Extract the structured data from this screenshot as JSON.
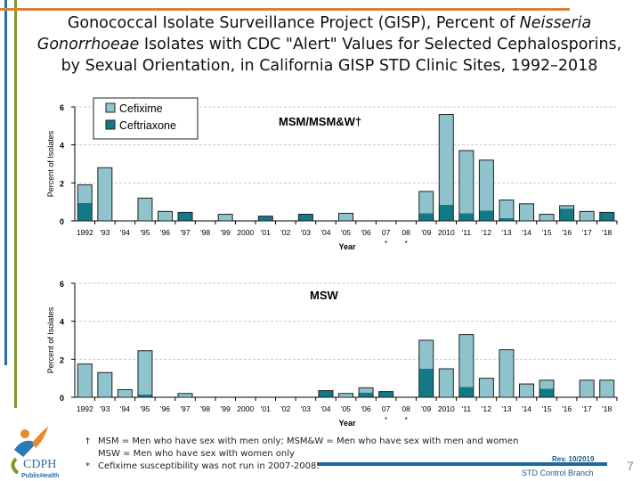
{
  "title": {
    "part1": "Gonococcal Isolate Surveillance Project (GISP), Percent of ",
    "italic": "Neisseria Gonorrhoeae",
    "part2": " Isolates with CDC \"Alert\" Values for Selected Cephalosporins, by Sexual Orientation, in California GISP STD Clinic Sites, 1992–2018"
  },
  "colors": {
    "cefixime": "#8fc4cc",
    "ceftriaxone": "#127a86",
    "blue_rule": "#2a6ea8",
    "green_rule": "#7a9a2a",
    "orange_rule": "#d7843a"
  },
  "chart_data": [
    {
      "type": "bar",
      "stacked": true,
      "title": "MSM/MSM&W†",
      "xlabel": "Year",
      "ylabel": "Percent of Isolates",
      "ylim": [
        0,
        6
      ],
      "yticks": [
        "0",
        "2",
        "4",
        "6"
      ],
      "grid": true,
      "legend": "top-left",
      "categories": [
        "1992",
        "'93",
        "'94",
        "'95",
        "'96",
        "'97",
        "'98",
        "'99",
        "2000",
        "'01",
        "'02",
        "'03",
        "'04",
        "'05",
        "'06",
        "07",
        "08",
        "'09",
        "2010",
        "'11",
        "'12",
        "'13",
        "'14",
        "'15",
        "'16",
        "'17",
        "'18"
      ],
      "category_marks": {
        "07": "*",
        "08": "*"
      },
      "series": [
        {
          "name": "Ceftriaxone",
          "values": [
            0.95,
            0,
            0,
            0,
            0,
            0.45,
            0,
            0,
            0,
            0.25,
            0,
            0.35,
            0,
            0,
            0,
            0,
            0,
            0.4,
            0.85,
            0.4,
            0.55,
            0.15,
            0,
            0,
            0.65,
            0,
            0.45
          ]
        },
        {
          "name": "Cefixime",
          "values": [
            0.95,
            2.8,
            0,
            1.2,
            0.5,
            0,
            0,
            0.35,
            0,
            0,
            0,
            0,
            0,
            0.4,
            0,
            0,
            0,
            1.15,
            4.75,
            3.3,
            2.65,
            0.95,
            0.9,
            0.35,
            0.15,
            0.5,
            0
          ]
        }
      ]
    },
    {
      "type": "bar",
      "stacked": true,
      "title": "MSW",
      "xlabel": "Year",
      "ylabel": "Percent of Isolates",
      "ylim": [
        0,
        6
      ],
      "yticks": [
        "0",
        "2",
        "4",
        "6"
      ],
      "grid": true,
      "categories": [
        "1992",
        "'93",
        "'94",
        "'95",
        "'96",
        "'97",
        "'98",
        "'99",
        "2000",
        "'01",
        "'02",
        "'03",
        "'04",
        "'05",
        "'06",
        "07",
        "08",
        "'09",
        "2010",
        "'11",
        "'12",
        "'13",
        "'14",
        "'15",
        "'16",
        "'17",
        "'18"
      ],
      "category_marks": {
        "07": "*",
        "08": "*"
      },
      "series": [
        {
          "name": "Ceftriaxone",
          "values": [
            0,
            0,
            0,
            0.15,
            0,
            0,
            0,
            0,
            0,
            0,
            0,
            0,
            0.35,
            0,
            0.25,
            0.3,
            0,
            1.5,
            0,
            0.55,
            0,
            0,
            0,
            0.45,
            0,
            0,
            0
          ]
        },
        {
          "name": "Cefixime",
          "values": [
            1.75,
            1.3,
            0.4,
            2.3,
            0,
            0.2,
            0,
            0,
            0,
            0,
            0,
            0,
            0,
            0.2,
            0.25,
            0,
            0,
            1.5,
            1.5,
            2.75,
            1.0,
            2.5,
            0.7,
            0.45,
            0,
            0.9,
            0.9
          ]
        }
      ]
    }
  ],
  "footnotes": {
    "dagger_mark": "†",
    "dagger_line1": "MSM = Men who have sex with men only; MSM&W = Men who have sex with men and women",
    "dagger_line2": "MSW = Men who have sex with women only",
    "star_mark": "*",
    "star_line": "Cefixime susceptibility was not run in 2007-2008."
  },
  "footer": {
    "rev": "Rev. 10/2019",
    "branch": "STD Control Branch",
    "page": "7"
  },
  "logo": {
    "text": "CDPH",
    "sub": "PublicHealth"
  }
}
